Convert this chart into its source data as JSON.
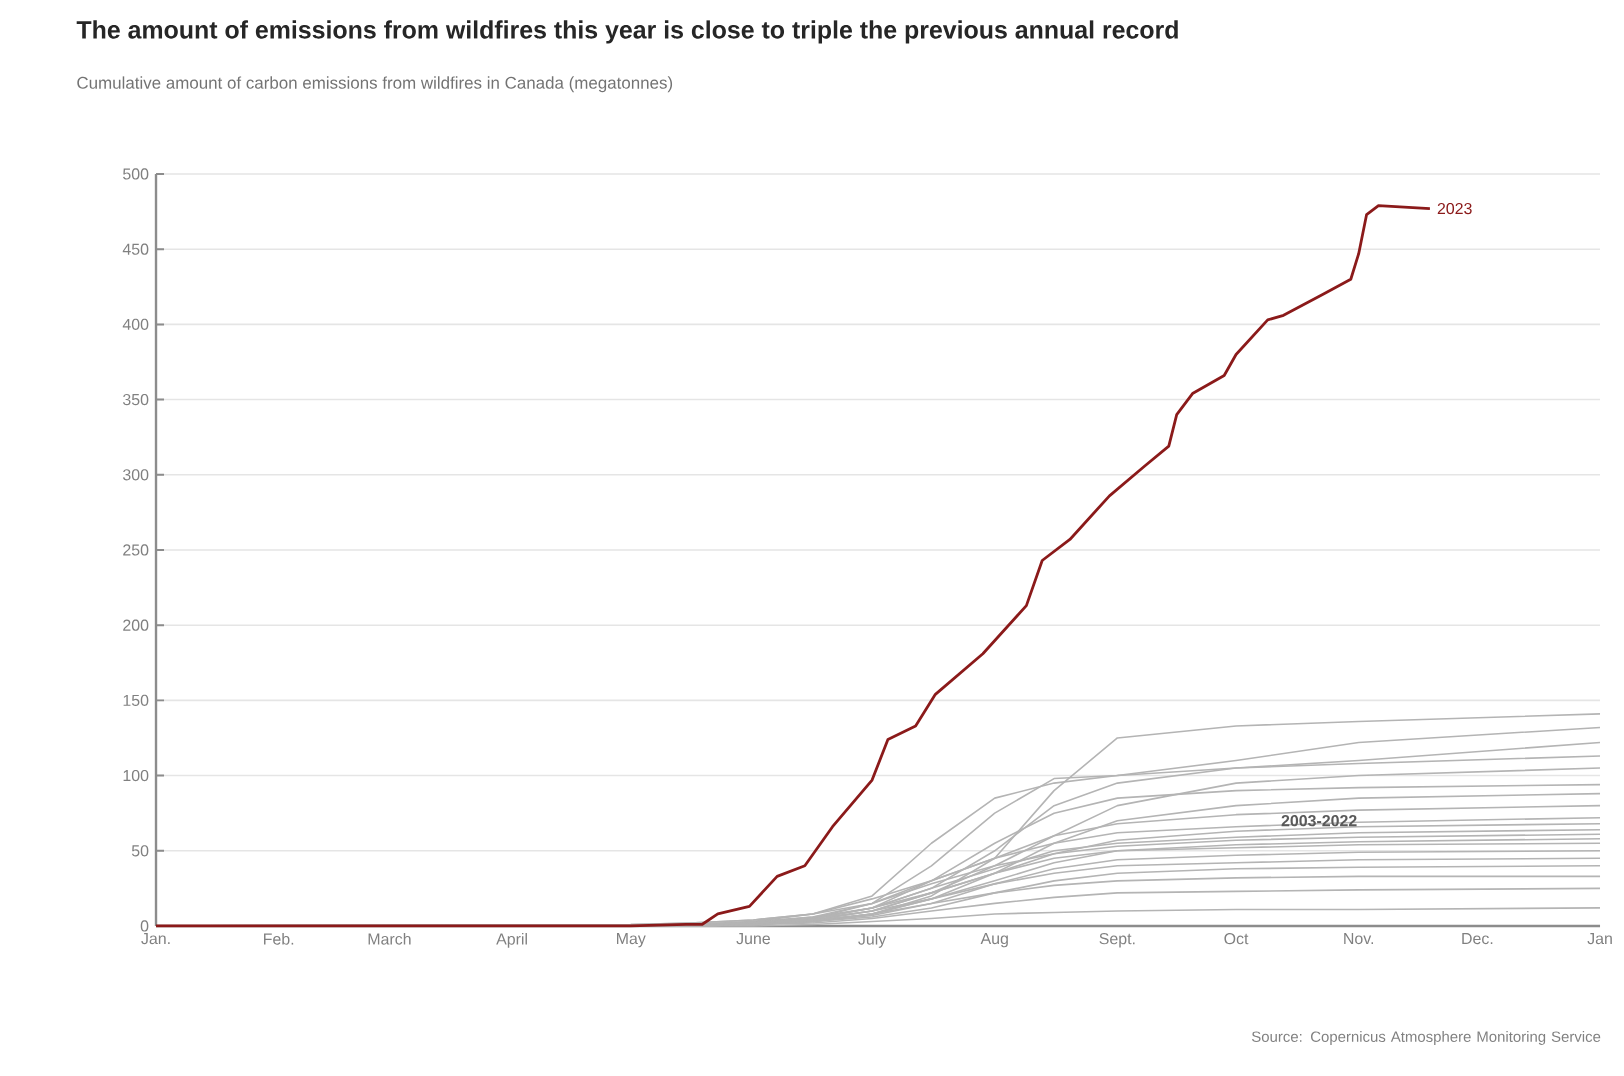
{
  "chart_data": {
    "type": "line",
    "title": "The amount of emissions from wildfires this year is close to triple the previous annual record",
    "subtitle": "Cumulative amount of carbon emissions from wildfires in Canada (megatonnes)",
    "x": [
      "2023-01-01",
      "2023-05-01",
      "2023-05-16",
      "2023-06-01",
      "2023-06-16",
      "2023-07-01",
      "2023-07-16",
      "2023-08-01",
      "2023-08-16",
      "2023-09-01",
      "2023-10-01",
      "2023-11-01",
      "2024-01-01"
    ],
    "xlim": [
      "2023-01-01",
      "2024-01-01"
    ],
    "xticks": [
      {
        "value": "2023-01-01",
        "label": "Jan."
      },
      {
        "value": "2023-02-01",
        "label": "Feb."
      },
      {
        "value": "2023-03-01",
        "label": "March"
      },
      {
        "value": "2023-04-01",
        "label": "April"
      },
      {
        "value": "2023-05-01",
        "label": "May"
      },
      {
        "value": "2023-06-01",
        "label": "June"
      },
      {
        "value": "2023-07-01",
        "label": "July"
      },
      {
        "value": "2023-08-01",
        "label": "Aug"
      },
      {
        "value": "2023-09-01",
        "label": "Sept."
      },
      {
        "value": "2023-10-01",
        "label": "Oct"
      },
      {
        "value": "2023-11-01",
        "label": "Nov."
      },
      {
        "value": "2023-12-01",
        "label": "Dec."
      },
      {
        "value": "2024-01-01",
        "label": "Jan"
      }
    ],
    "ylim": [
      0,
      500
    ],
    "yticks": [
      0,
      50,
      100,
      150,
      200,
      250,
      300,
      350,
      400,
      450,
      500
    ],
    "grid": "y",
    "series": [
      {
        "color": "#b4b4b4",
        "values": [
          0,
          0,
          0,
          1,
          3,
          8,
          20,
          45,
          90,
          125,
          133,
          136,
          141
        ]
      },
      {
        "color": "#b4b4b4",
        "values": [
          0,
          0,
          0,
          2,
          5,
          15,
          40,
          75,
          98,
          100,
          110,
          122,
          132
        ]
      },
      {
        "color": "#b4b4b4",
        "values": [
          0,
          1,
          2,
          4,
          8,
          20,
          55,
          85,
          95,
          100,
          105,
          110,
          122
        ]
      },
      {
        "color": "#b4b4b4",
        "values": [
          0,
          0,
          1,
          3,
          6,
          12,
          25,
          50,
          80,
          95,
          105,
          108,
          113
        ]
      },
      {
        "color": "#b4b4b4",
        "values": [
          0,
          0,
          0,
          1,
          4,
          10,
          22,
          40,
          60,
          80,
          95,
          100,
          105
        ]
      },
      {
        "color": "#b4b4b4",
        "values": [
          0,
          0,
          1,
          2,
          5,
          12,
          30,
          55,
          75,
          85,
          90,
          92,
          94
        ]
      },
      {
        "color": "#b4b4b4",
        "values": [
          0,
          0,
          0,
          1,
          3,
          8,
          18,
          35,
          55,
          70,
          80,
          85,
          88
        ]
      },
      {
        "color": "#b4b4b4",
        "values": [
          0,
          0,
          0,
          2,
          6,
          15,
          30,
          45,
          60,
          68,
          74,
          77,
          80
        ]
      },
      {
        "color": "#b4b4b4",
        "values": [
          0,
          0,
          1,
          3,
          8,
          18,
          30,
          45,
          55,
          62,
          66,
          69,
          72
        ]
      },
      {
        "color": "#b4b4b4",
        "values": [
          0,
          0,
          0,
          1,
          4,
          10,
          22,
          35,
          48,
          57,
          63,
          66,
          68
        ]
      },
      {
        "color": "#b4b4b4",
        "values": [
          0,
          0,
          0,
          2,
          5,
          12,
          25,
          38,
          50,
          55,
          59,
          62,
          64
        ]
      },
      {
        "color": "#b4b4b4",
        "values": [
          0,
          1,
          2,
          4,
          8,
          15,
          28,
          40,
          48,
          53,
          57,
          59,
          61
        ]
      },
      {
        "color": "#b4b4b4",
        "values": [
          0,
          0,
          0,
          1,
          3,
          8,
          18,
          30,
          42,
          50,
          54,
          56,
          58
        ]
      },
      {
        "color": "#b4b4b4",
        "values": [
          0,
          0,
          1,
          2,
          5,
          12,
          22,
          35,
          45,
          50,
          52,
          54,
          55
        ]
      },
      {
        "color": "#b4b4b4",
        "values": [
          0,
          0,
          0,
          1,
          3,
          7,
          15,
          28,
          38,
          44,
          47,
          49,
          50
        ]
      },
      {
        "color": "#b4b4b4",
        "values": [
          0,
          0,
          0,
          2,
          5,
          10,
          18,
          28,
          35,
          40,
          42,
          44,
          45
        ]
      },
      {
        "color": "#b4b4b4",
        "values": [
          0,
          0,
          0,
          1,
          3,
          6,
          12,
          22,
          30,
          35,
          38,
          39,
          40
        ]
      },
      {
        "color": "#b4b4b4",
        "values": [
          0,
          0,
          1,
          2,
          4,
          8,
          15,
          22,
          27,
          30,
          32,
          33,
          33
        ]
      },
      {
        "color": "#b4b4b4",
        "values": [
          0,
          0,
          0,
          1,
          2,
          5,
          10,
          15,
          19,
          22,
          23,
          24,
          25
        ]
      },
      {
        "color": "#b4b4b4",
        "values": [
          0,
          0,
          0,
          0,
          1,
          3,
          5,
          8,
          9,
          10,
          11,
          11,
          12
        ]
      },
      {
        "name": "2023",
        "color": "#8b1a1a",
        "x": [
          "2023-01-01",
          "2023-05-01",
          "2023-05-15",
          "2023-05-19",
          "2023-05-23",
          "2023-05-31",
          "2023-06-07",
          "2023-06-14",
          "2023-06-21",
          "2023-07-01",
          "2023-07-05",
          "2023-07-12",
          "2023-07-17",
          "2023-07-29",
          "2023-08-09",
          "2023-08-13",
          "2023-08-20",
          "2023-08-30",
          "2023-09-08",
          "2023-09-14",
          "2023-09-16",
          "2023-09-20",
          "2023-09-28",
          "2023-10-01",
          "2023-10-09",
          "2023-10-13",
          "2023-10-23",
          "2023-10-30",
          "2023-11-01",
          "2023-11-03",
          "2023-11-06",
          "2023-11-19"
        ],
        "values": [
          0,
          0,
          1,
          1,
          8,
          13,
          33,
          40,
          66,
          97,
          124,
          133,
          154,
          181,
          213,
          243,
          257,
          286,
          306,
          319,
          340,
          354,
          366,
          380,
          403,
          406,
          420,
          430,
          447,
          473,
          479,
          477
        ]
      }
    ],
    "annotations": [
      {
        "text": "2003-2022",
        "x": "2023-10-22",
        "y": 70
      },
      "Source: Copernicus Atmosphere Monitoring Service"
    ]
  }
}
